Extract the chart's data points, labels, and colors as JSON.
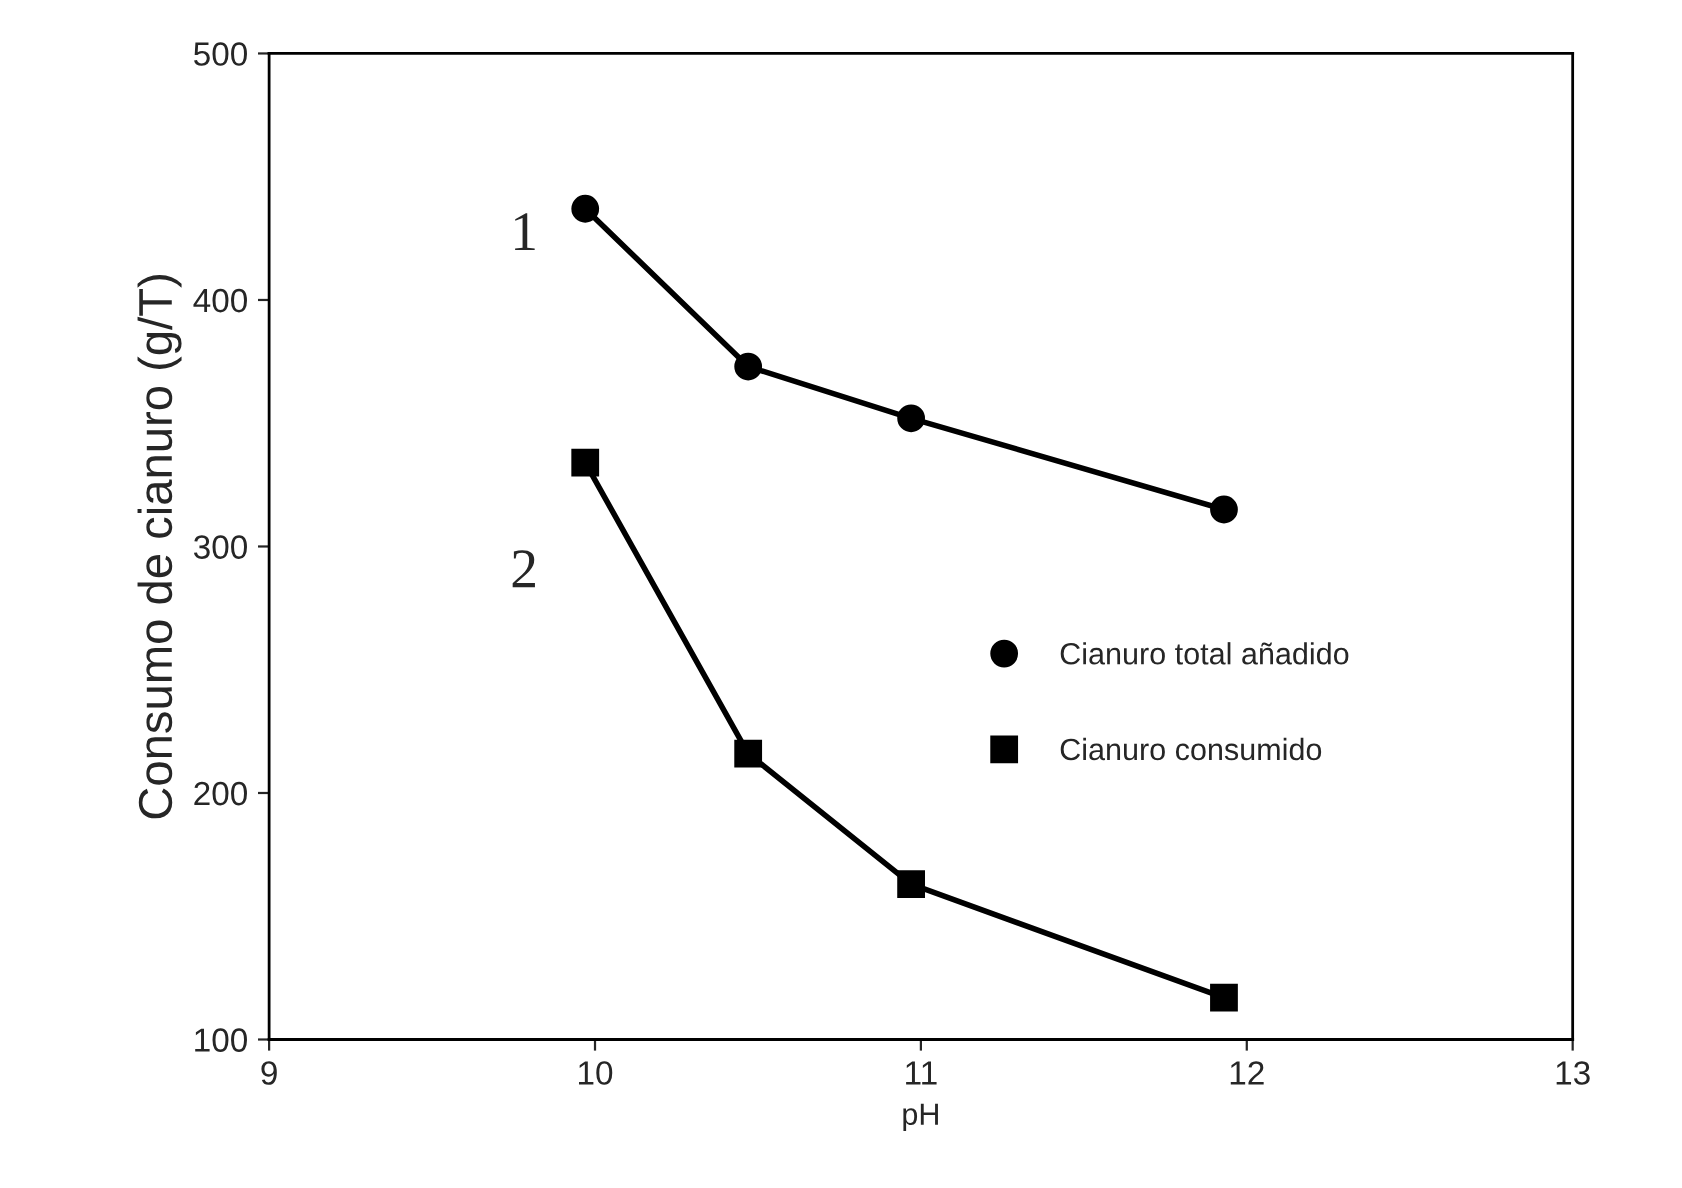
{
  "chart_data": {
    "type": "line",
    "xlabel": "pH",
    "ylabel": "Consumo de cianuro (g/T)",
    "xlim": [
      9,
      13
    ],
    "xticks": [
      9,
      10,
      11,
      12,
      13
    ],
    "ylim": [
      100,
      500
    ],
    "yticks": [
      100,
      200,
      300,
      400,
      500
    ],
    "grid": false,
    "legend": "right",
    "line_style": "solid",
    "series": [
      {
        "name": "Cianuro total añadido",
        "color": "#000000",
        "marker": "circle",
        "x": [
          9.97,
          10.47,
          10.97,
          11.93
        ],
        "values": [
          437,
          373,
          352,
          315
        ]
      },
      {
        "name": "Cianuro consumido",
        "color": "#000000",
        "marker": "square",
        "x": [
          9.97,
          10.47,
          10.97,
          11.93
        ],
        "values": [
          334,
          216,
          163,
          117
        ]
      }
    ],
    "annotations": [
      "1",
      "2"
    ]
  }
}
